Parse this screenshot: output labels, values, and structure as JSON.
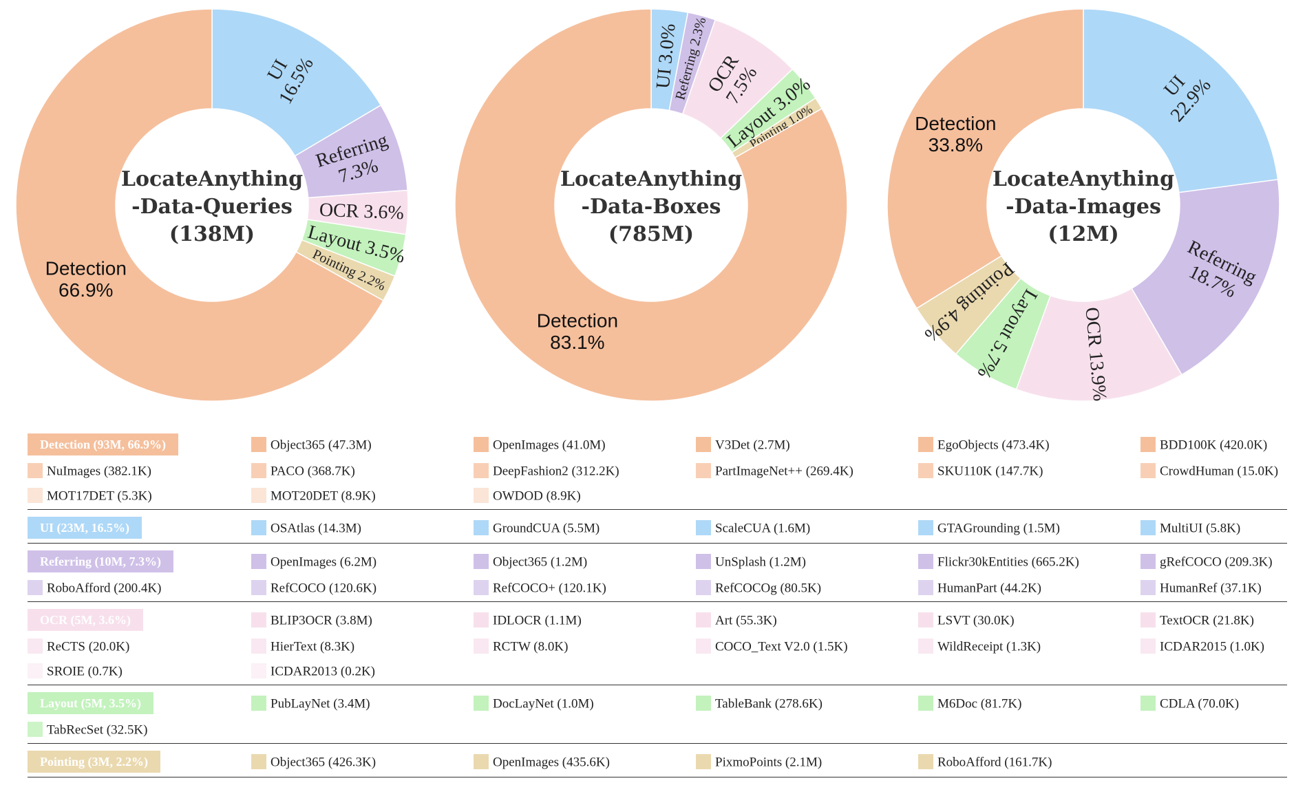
{
  "colors": {
    "Detection": "#f5bf9c",
    "UI": "#aed8f7",
    "Referring": "#cfc0e8",
    "OCR": "#f7e0ec",
    "Layout": "#c3f2bd",
    "Pointing": "#ead9af"
  },
  "chart_data": [
    {
      "type": "pie",
      "title": "LocateAnything -Data-Queries (138M)",
      "title_lines": [
        "LocateAnything",
        "-Data-Queries",
        "(138M)"
      ],
      "slices": [
        {
          "name": "UI",
          "value": 16.5,
          "label_lines": [
            "UI",
            "16.5%"
          ]
        },
        {
          "name": "Referring",
          "value": 7.3,
          "label_lines": [
            "Referring",
            "7.3%"
          ]
        },
        {
          "name": "OCR",
          "value": 3.6,
          "label_lines": [
            "OCR 3.6%"
          ]
        },
        {
          "name": "Layout",
          "value": 3.5,
          "label_lines": [
            "Layout 3.5%"
          ]
        },
        {
          "name": "Pointing",
          "value": 2.2,
          "label_lines": [
            "Pointing 2.2%"
          ]
        },
        {
          "name": "Detection",
          "value": 66.9,
          "label_lines": [
            "Detection",
            "66.9%"
          ]
        }
      ]
    },
    {
      "type": "pie",
      "title": "LocateAnything -Data-Boxes (785M)",
      "title_lines": [
        "LocateAnything",
        "-Data-Boxes",
        "(785M)"
      ],
      "slices": [
        {
          "name": "UI",
          "value": 3.0,
          "label_lines": [
            "UI 3.0%"
          ]
        },
        {
          "name": "Referring",
          "value": 2.3,
          "label_lines": [
            "Referring 2.3%"
          ]
        },
        {
          "name": "OCR",
          "value": 7.5,
          "label_lines": [
            "OCR",
            "7.5%"
          ]
        },
        {
          "name": "Layout",
          "value": 3.0,
          "label_lines": [
            "Layout 3.0%"
          ]
        },
        {
          "name": "Pointing",
          "value": 1.0,
          "label_lines": [
            "Pointing 1.0%"
          ]
        },
        {
          "name": "Detection",
          "value": 83.1,
          "label_lines": [
            "Detection",
            "83.1%"
          ]
        }
      ]
    },
    {
      "type": "pie",
      "title": "LocateAnything -Data-Images (12M)",
      "title_lines": [
        "LocateAnything",
        "-Data-Images",
        "(12M)"
      ],
      "slices": [
        {
          "name": "UI",
          "value": 22.9,
          "label_lines": [
            "UI",
            "22.9%"
          ]
        },
        {
          "name": "Referring",
          "value": 18.7,
          "label_lines": [
            "Referring",
            "18.7%"
          ]
        },
        {
          "name": "OCR",
          "value": 13.9,
          "label_lines": [
            "OCR 13.9%"
          ]
        },
        {
          "name": "Layout",
          "value": 5.7,
          "label_lines": [
            "Layout 5.7%"
          ]
        },
        {
          "name": "Pointing",
          "value": 4.9,
          "label_lines": [
            "Pointing 4.9%"
          ]
        },
        {
          "name": "Detection",
          "value": 33.8,
          "label_lines": [
            "Detection",
            "33.8%"
          ]
        }
      ]
    }
  ],
  "legend": {
    "groups": [
      {
        "category": "Detection",
        "header": "Detection (93M, 66.9%)",
        "items": [
          {
            "label": "Object365 (47.3M)",
            "shade": 1.0
          },
          {
            "label": "OpenImages (41.0M)",
            "shade": 1.0
          },
          {
            "label": "V3Det (2.7M)",
            "shade": 1.0
          },
          {
            "label": "EgoObjects (473.4K)",
            "shade": 1.0
          },
          {
            "label": "BDD100K (420.0K)",
            "shade": 1.0
          },
          {
            "label": "NuImages (382.1K)",
            "shade": 0.75
          },
          {
            "label": "PACO (368.7K)",
            "shade": 0.75
          },
          {
            "label": "DeepFashion2 (312.2K)",
            "shade": 0.75
          },
          {
            "label": "PartImageNet++ (269.4K)",
            "shade": 0.75
          },
          {
            "label": "SKU110K (147.7K)",
            "shade": 0.75
          },
          {
            "label": "CrowdHuman (15.0K)",
            "shade": 0.75
          },
          {
            "label": "MOT17DET (5.3K)",
            "shade": 0.4
          },
          {
            "label": "MOT20DET (8.9K)",
            "shade": 0.4
          },
          {
            "label": "OWDOD (8.9K)",
            "shade": 0.4
          }
        ]
      },
      {
        "category": "UI",
        "header": "UI (23M, 16.5%)",
        "items": [
          {
            "label": "OSAtlas (14.3M)",
            "shade": 1.0
          },
          {
            "label": "GroundCUA (5.5M)",
            "shade": 1.0
          },
          {
            "label": "ScaleCUA (1.6M)",
            "shade": 1.0
          },
          {
            "label": "GTAGrounding (1.5M)",
            "shade": 1.0
          },
          {
            "label": "MultiUI (5.8K)",
            "shade": 1.0
          }
        ]
      },
      {
        "category": "Referring",
        "header": "Referring (10M, 7.3%)",
        "items": [
          {
            "label": "OpenImages (6.2M)",
            "shade": 1.0
          },
          {
            "label": "Object365 (1.2M)",
            "shade": 1.0
          },
          {
            "label": "UnSplash (1.2M)",
            "shade": 1.0
          },
          {
            "label": "Flickr30kEntities (665.2K)",
            "shade": 1.0
          },
          {
            "label": "gRefCOCO (209.3K)",
            "shade": 1.0
          },
          {
            "label": "RoboAfford (200.4K)",
            "shade": 0.7
          },
          {
            "label": "RefCOCO (120.6K)",
            "shade": 0.7
          },
          {
            "label": "RefCOCO+ (120.1K)",
            "shade": 0.7
          },
          {
            "label": "RefCOCOg (80.5K)",
            "shade": 0.7
          },
          {
            "label": "HumanPart (44.2K)",
            "shade": 0.7
          },
          {
            "label": "HumanRef (37.1K)",
            "shade": 0.7
          }
        ]
      },
      {
        "category": "OCR",
        "header": "OCR (5M, 3.6%)",
        "items": [
          {
            "label": "BLIP3OCR (3.8M)",
            "shade": 1.0
          },
          {
            "label": "IDLOCR (1.1M)",
            "shade": 1.0
          },
          {
            "label": "Art (55.3K)",
            "shade": 1.0
          },
          {
            "label": "LSVT (30.0K)",
            "shade": 1.0
          },
          {
            "label": "TextOCR (21.8K)",
            "shade": 1.0
          },
          {
            "label": "ReCTS (20.0K)",
            "shade": 0.75
          },
          {
            "label": "HierText (8.3K)",
            "shade": 0.75
          },
          {
            "label": "RCTW (8.0K)",
            "shade": 0.75
          },
          {
            "label": "COCO_Text V2.0 (1.5K)",
            "shade": 0.75
          },
          {
            "label": "WildReceipt (1.3K)",
            "shade": 0.75
          },
          {
            "label": "ICDAR2015 (1.0K)",
            "shade": 0.75
          },
          {
            "label": "SROIE (0.7K)",
            "shade": 0.45
          },
          {
            "label": "ICDAR2013 (0.2K)",
            "shade": 0.45
          }
        ]
      },
      {
        "category": "Layout",
        "header": "Layout (5M, 3.5%)",
        "items": [
          {
            "label": "PubLayNet (3.4M)",
            "shade": 1.0
          },
          {
            "label": "DocLayNet (1.0M)",
            "shade": 1.0
          },
          {
            "label": "TableBank (278.6K)",
            "shade": 1.0
          },
          {
            "label": "M6Doc (81.7K)",
            "shade": 1.0
          },
          {
            "label": "CDLA (70.0K)",
            "shade": 1.0
          },
          {
            "label": "TabRecSet (32.5K)",
            "shade": 0.85
          }
        ]
      },
      {
        "category": "Pointing",
        "header": "Pointing (3M, 2.2%)",
        "items": [
          {
            "label": "Object365 (426.3K)",
            "shade": 1.0
          },
          {
            "label": "OpenImages (435.6K)",
            "shade": 1.0
          },
          {
            "label": "PixmoPoints (2.1M)",
            "shade": 1.0
          },
          {
            "label": "RoboAfford (161.7K)",
            "shade": 1.0
          }
        ]
      }
    ]
  }
}
